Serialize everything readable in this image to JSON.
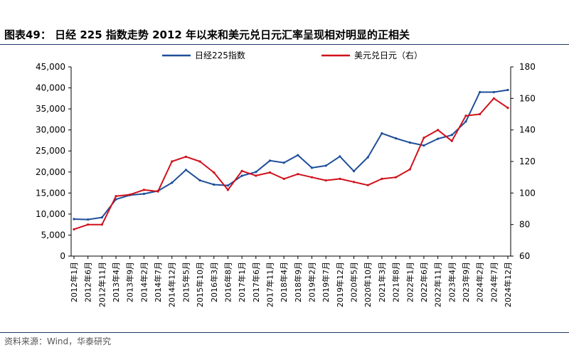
{
  "title": "图表49：  日经 225 指数走势 2012 年以来和美元兑日元汇率呈现相对明显的正相关",
  "source": "资料来源：Wind，华泰研究",
  "colors": {
    "nikkei": "#1f4e9a",
    "usdjpy": "#d0111b",
    "rule": "#1f3864"
  },
  "chart_data": {
    "type": "line",
    "title": "",
    "xlabel": "",
    "ylabel": "",
    "legend_position": "top-center",
    "grid": false,
    "x": [
      "2012年1月",
      "2012年6月",
      "2012年11月",
      "2013年4月",
      "2013年9月",
      "2014年2月",
      "2014年7月",
      "2014年12月",
      "2015年5月",
      "2015年10月",
      "2016年3月",
      "2016年8月",
      "2017年1月",
      "2017年6月",
      "2017年11月",
      "2018年4月",
      "2018年9月",
      "2019年2月",
      "2019年7月",
      "2019年12月",
      "2020年5月",
      "2020年10月",
      "2021年3月",
      "2021年8月",
      "2022年1月",
      "2022年6月",
      "2022年11月",
      "2023年4月",
      "2023年9月",
      "2024年2月",
      "2024年7月",
      "2024年12月"
    ],
    "ylim_left": [
      0,
      45000
    ],
    "yticks_left": [
      "0",
      "5,000",
      "10,000",
      "15,000",
      "20,000",
      "25,000",
      "30,000",
      "35,000",
      "40,000",
      "45,000"
    ],
    "ylim_right": [
      60,
      180
    ],
    "yticks_right": [
      "60",
      "80",
      "100",
      "120",
      "140",
      "160",
      "180"
    ],
    "series": [
      {
        "name": "日经225指数",
        "axis": "left",
        "values": [
          8800,
          8700,
          9200,
          13500,
          14500,
          14800,
          15500,
          17450,
          20500,
          18000,
          17000,
          16800,
          19100,
          20000,
          22700,
          22200,
          24000,
          21000,
          21500,
          23700,
          20200,
          23500,
          29200,
          28000,
          27000,
          26300,
          27900,
          28800,
          32000,
          39000,
          39000,
          39500
        ]
      },
      {
        "name": "美元兑日元（右）",
        "axis": "right",
        "values": [
          77,
          80,
          80,
          98,
          99,
          102,
          101,
          120,
          123,
          120,
          113,
          102,
          114,
          111,
          113,
          109,
          112,
          110,
          108,
          109,
          107,
          105,
          109,
          110,
          115,
          135,
          140,
          133,
          149,
          150,
          160,
          154
        ]
      }
    ]
  }
}
